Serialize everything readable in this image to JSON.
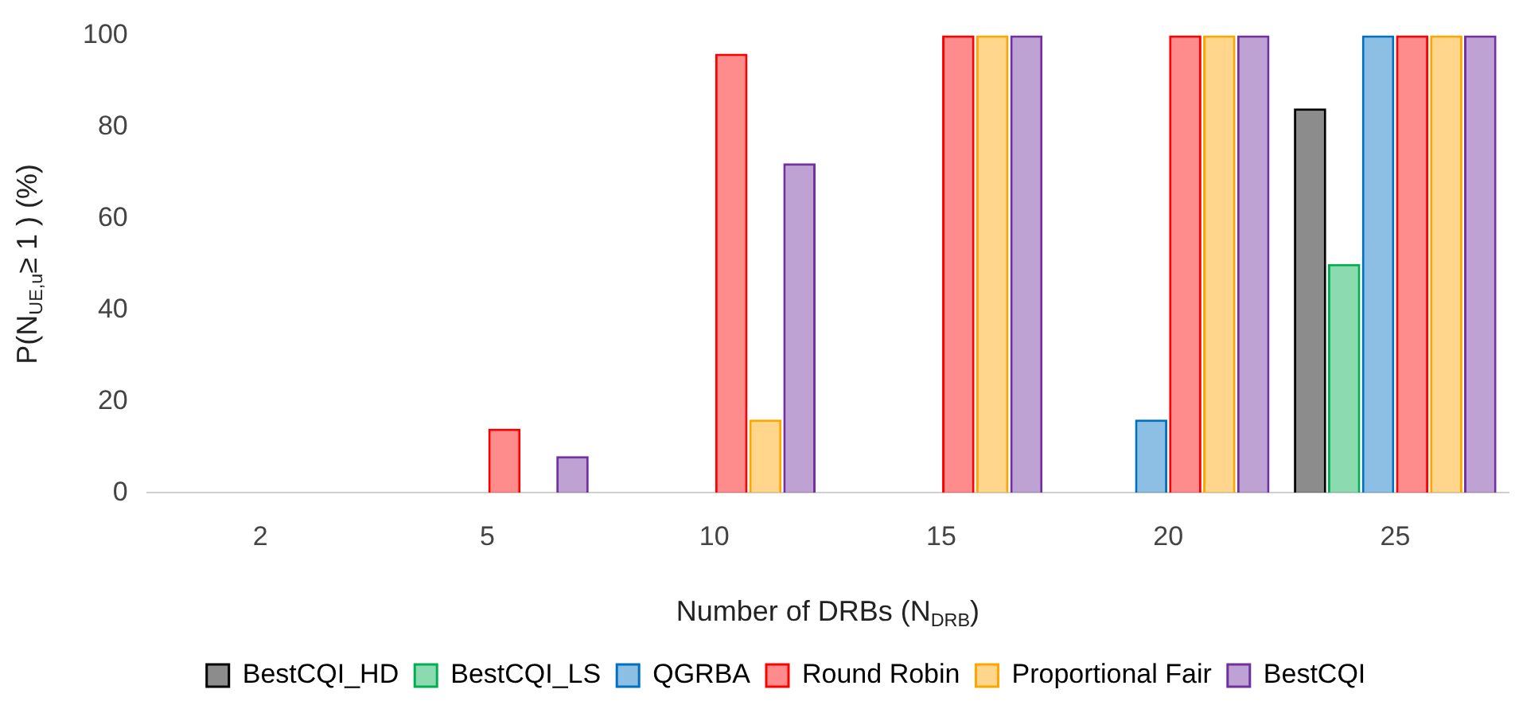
{
  "chart_data": {
    "type": "bar",
    "xlabel": "Number of DRBs (N$_{DRB}$)",
    "ylabel": "P(N$_{UE,u}$≥ 1 ) (%)",
    "categories": [
      "2",
      "5",
      "10",
      "15",
      "20",
      "25"
    ],
    "series": [
      {
        "name": "BestCQI_HD",
        "color": "#000000",
        "values": [
          0,
          0,
          0,
          0,
          0,
          84
        ]
      },
      {
        "name": "BestCQI_LS",
        "color": "#00b050",
        "values": [
          0,
          0,
          0,
          0,
          0,
          50
        ]
      },
      {
        "name": "QGRBA",
        "color": "#0070c0",
        "values": [
          0,
          0,
          0,
          0,
          16,
          100
        ]
      },
      {
        "name": "Round Robin",
        "color": "#ff0000",
        "values": [
          0,
          14,
          96,
          100,
          100,
          100
        ]
      },
      {
        "name": "Proportional Fair",
        "color": "#ffa500",
        "values": [
          0,
          0,
          16,
          100,
          100,
          100
        ]
      },
      {
        "name": "BestCQI",
        "color": "#7030a0",
        "values": [
          0,
          8,
          72,
          100,
          100,
          100
        ]
      }
    ],
    "ylim": [
      0,
      100
    ],
    "yticks": [
      0,
      20,
      40,
      60,
      80,
      100
    ],
    "grid": false,
    "legend": "bottom"
  }
}
